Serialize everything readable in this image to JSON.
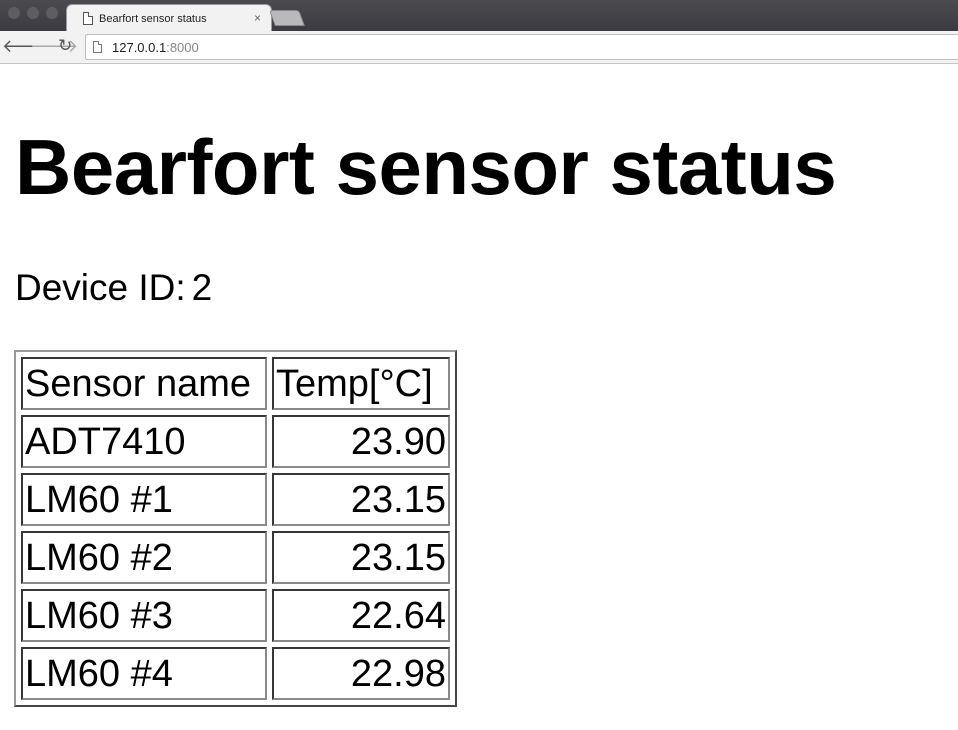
{
  "browser": {
    "tab_title": "Bearfort sensor status",
    "tab_close": "×",
    "url_host": "127.0.0.1",
    "url_port": ":8000"
  },
  "page": {
    "title": "Bearfort sensor status",
    "device_label": "Device ID:",
    "device_id": "2"
  },
  "table": {
    "headers": [
      "Sensor name",
      "Temp[°C]"
    ],
    "rows": [
      {
        "name": "ADT7410",
        "temp": "23.90"
      },
      {
        "name": "LM60 #1",
        "temp": "23.15"
      },
      {
        "name": "LM60 #2",
        "temp": "23.15"
      },
      {
        "name": "LM60 #3",
        "temp": "22.64"
      },
      {
        "name": "LM60 #4",
        "temp": "22.98"
      }
    ]
  },
  "icons": [
    "page-icon",
    "close-icon",
    "back-arrow-icon",
    "forward-arrow-icon",
    "reload-icon",
    "document-icon"
  ]
}
